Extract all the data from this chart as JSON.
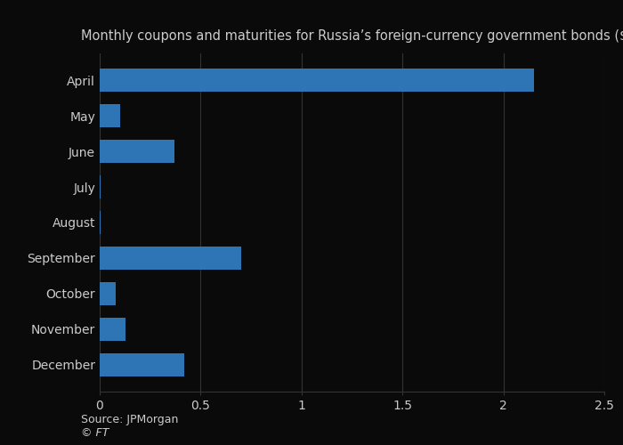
{
  "title": "Monthly coupons and maturities for Russia’s foreign-currency government bonds ($bn)",
  "categories": [
    "April",
    "May",
    "June",
    "July",
    "August",
    "September",
    "October",
    "November",
    "December"
  ],
  "values": [
    2.15,
    0.1,
    0.37,
    0.005,
    0.005,
    0.7,
    0.08,
    0.13,
    0.42
  ],
  "bar_color": "#2e75b6",
  "background_color": "#0a0a0a",
  "plot_bg_color": "#0a0a0a",
  "text_color": "#cccccc",
  "grid_color": "#333333",
  "xlim": [
    0,
    2.5
  ],
  "xticks": [
    0,
    0.5,
    1.0,
    1.5,
    2.0,
    2.5
  ],
  "source_text": "Source: JPMorgan",
  "ft_text": "© FT",
  "title_fontsize": 10.5,
  "label_fontsize": 10,
  "tick_fontsize": 10,
  "source_fontsize": 9
}
